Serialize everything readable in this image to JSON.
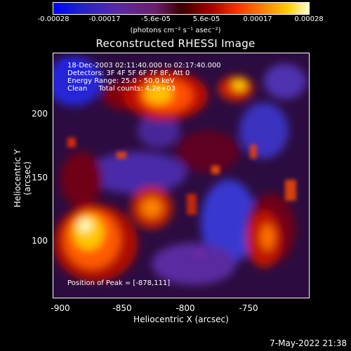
{
  "colorbar": {
    "ticks": [
      "-0.00028",
      "-0.00017",
      "-5.6e-05",
      "5.6e-05",
      "0.00017",
      "0.00028"
    ],
    "unit": "(photons cm⁻² s⁻¹ asec⁻²)"
  },
  "title": "Reconstructed RHESSI Image",
  "annotations": {
    "time": "18-Dec-2003 02:11:40.000 to 02:17:40.000",
    "detectors": "Detectors: 3F 4F 5F 6F 7F 8F, Att 0",
    "energy": "Energy Range: 25.0 - 50.0 keV",
    "clean": "Clean     Total counts: 4.2e+03",
    "peak": "Position of Peak = [-878,111]"
  },
  "axes": {
    "xlabel": "Heliocentric X (arcsec)",
    "ylabel": "Heliocentric Y (arcsec)",
    "xticks": [
      "-900",
      "-850",
      "-800",
      "-750"
    ],
    "yticks": [
      "200",
      "150",
      "100"
    ]
  },
  "timestamp": "7-May-2022 21:38"
}
